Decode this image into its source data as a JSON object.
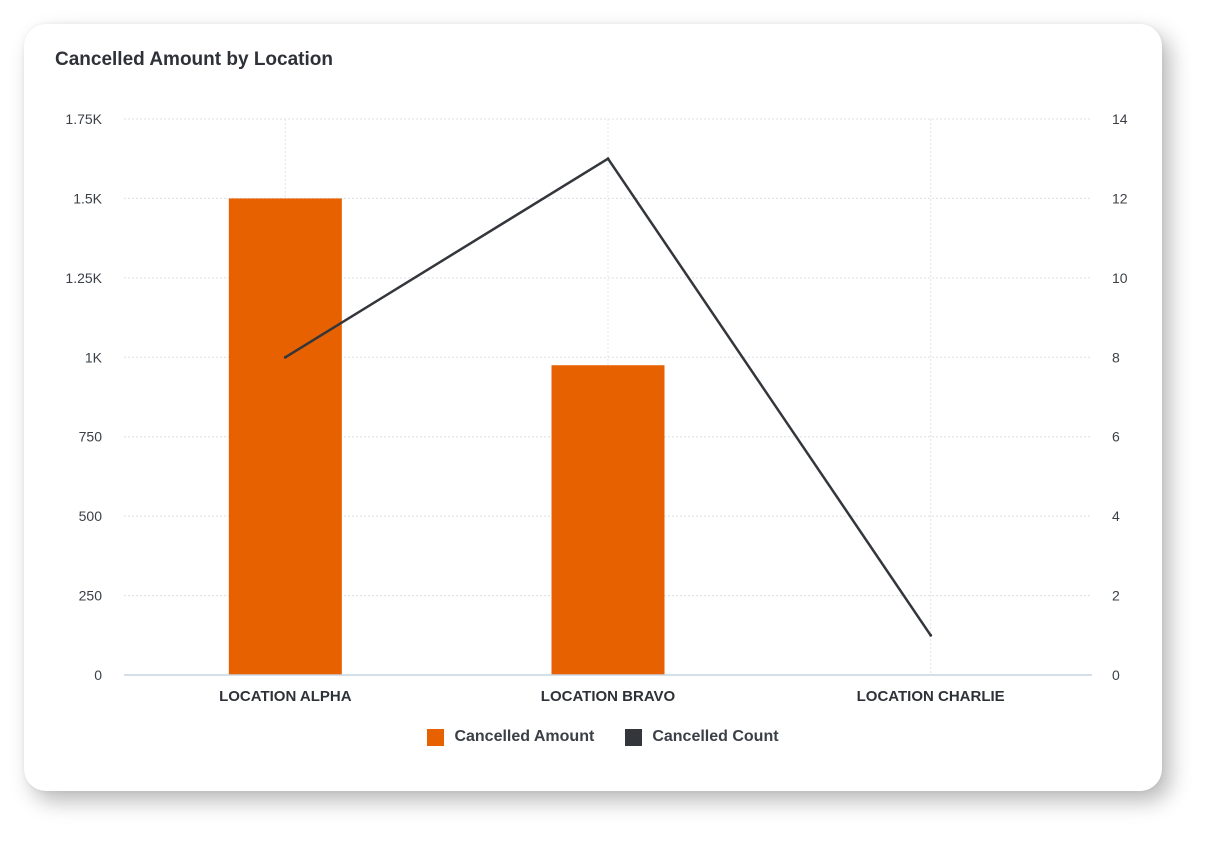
{
  "chart_data": {
    "type": "bar",
    "title": "Cancelled Amount by Location",
    "categories": [
      "LOCATION ALPHA",
      "LOCATION BRAVO",
      "LOCATION CHARLIE"
    ],
    "series": [
      {
        "name": "Cancelled Amount",
        "type": "bar",
        "axis": "left",
        "color": "#E86100",
        "values": [
          1500,
          975,
          0
        ]
      },
      {
        "name": "Cancelled Count",
        "type": "line",
        "axis": "right",
        "color": "#33363B",
        "values": [
          8,
          13,
          1
        ]
      }
    ],
    "y_left": {
      "range": [
        0,
        1750
      ],
      "ticks": [
        0,
        250,
        500,
        750,
        1000,
        1250,
        1500,
        1750
      ],
      "tick_labels": [
        "0",
        "250",
        "500",
        "750",
        "1K",
        "1.25K",
        "1.5K",
        "1.75K"
      ]
    },
    "y_right": {
      "range": [
        0,
        14
      ],
      "ticks": [
        0,
        2,
        4,
        6,
        8,
        10,
        12,
        14
      ],
      "tick_labels": [
        "0",
        "2",
        "4",
        "6",
        "8",
        "10",
        "12",
        "14"
      ]
    },
    "grid": true,
    "legend_position": "bottom-center"
  }
}
